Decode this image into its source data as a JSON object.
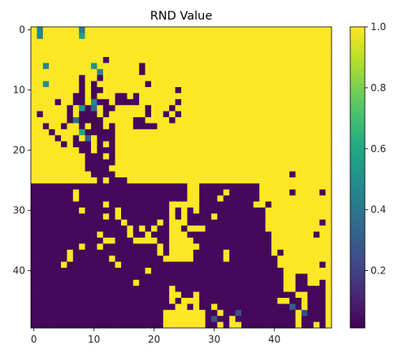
{
  "chart_data": {
    "type": "heatmap",
    "title": "RND Value",
    "xlabel": "",
    "ylabel": "",
    "rows": 50,
    "cols": 50,
    "xlim": [
      -0.5,
      49.5
    ],
    "ylim": [
      49.5,
      -0.5
    ],
    "xticks": [
      0,
      10,
      20,
      30,
      40
    ],
    "yticks": [
      0,
      10,
      20,
      30,
      40
    ],
    "colormap": "viridis",
    "vmin": 0.0,
    "vmax": 1.0,
    "colorbar_ticks": [
      "0.2",
      "0.4",
      "0.6",
      "0.8",
      "1.0"
    ],
    "colorbar_tick_values": [
      0.2,
      0.4,
      0.6,
      0.8,
      1.0
    ],
    "background_value": 1.0,
    "low_value": 0.02,
    "low_regions": [
      {
        "r0": 26,
        "r1": 49,
        "c0": 0,
        "c1": 22
      },
      {
        "r0": 39,
        "r1": 49,
        "c0": 23,
        "c1": 40
      },
      {
        "r0": 45,
        "r1": 49,
        "c0": 41,
        "c1": 48
      }
    ],
    "yellow_in_low": [
      [
        27,
        7
      ],
      [
        28,
        7
      ],
      [
        29,
        12
      ],
      [
        31,
        12
      ],
      [
        30,
        8
      ],
      [
        30,
        14
      ],
      [
        31,
        14
      ],
      [
        32,
        15
      ],
      [
        33,
        16
      ],
      [
        34,
        16
      ],
      [
        35,
        17
      ],
      [
        35,
        18
      ],
      [
        35,
        19
      ],
      [
        35,
        20
      ],
      [
        34,
        19
      ],
      [
        33,
        20
      ],
      [
        32,
        21
      ],
      [
        33,
        18
      ],
      [
        34,
        11
      ],
      [
        35,
        12
      ],
      [
        35,
        13
      ],
      [
        36,
        8
      ],
      [
        36,
        11
      ],
      [
        37,
        6
      ],
      [
        38,
        6
      ],
      [
        39,
        5
      ],
      [
        38,
        13
      ],
      [
        39,
        14
      ],
      [
        40,
        19
      ],
      [
        37,
        21
      ],
      [
        36,
        21
      ],
      [
        38,
        22
      ],
      [
        42,
        17
      ],
      [
        43,
        23
      ],
      [
        44,
        23
      ],
      [
        45,
        23
      ],
      [
        44,
        24
      ],
      [
        45,
        25
      ],
      [
        45,
        26
      ],
      [
        46,
        24
      ],
      [
        46,
        25
      ],
      [
        47,
        22
      ],
      [
        48,
        22
      ],
      [
        49,
        22
      ],
      [
        47,
        23
      ],
      [
        48,
        23
      ],
      [
        49,
        23
      ],
      [
        47,
        24
      ],
      [
        48,
        24
      ],
      [
        49,
        24
      ],
      [
        47,
        25
      ],
      [
        48,
        25
      ],
      [
        49,
        25
      ],
      [
        47,
        26
      ],
      [
        48,
        26
      ],
      [
        49,
        26
      ],
      [
        47,
        27
      ],
      [
        48,
        27
      ],
      [
        49,
        27
      ],
      [
        46,
        27
      ],
      [
        45,
        27
      ],
      [
        44,
        27
      ],
      [
        47,
        28
      ],
      [
        48,
        28
      ],
      [
        49,
        28
      ],
      [
        46,
        30
      ],
      [
        47,
        31
      ],
      [
        49,
        31
      ],
      [
        48,
        33
      ],
      [
        49,
        33
      ],
      [
        49,
        34
      ],
      [
        45,
        41
      ],
      [
        45,
        42
      ],
      [
        45,
        45
      ],
      [
        46,
        45
      ],
      [
        47,
        44
      ],
      [
        48,
        44
      ],
      [
        49,
        44
      ],
      [
        49,
        47
      ]
    ],
    "low_in_high": [
      [
        14,
        1
      ],
      [
        16,
        2
      ],
      [
        17,
        3
      ],
      [
        18,
        4
      ],
      [
        19,
        5
      ],
      [
        13,
        6
      ],
      [
        14,
        6
      ],
      [
        15,
        6
      ],
      [
        12,
        4
      ],
      [
        16,
        5
      ],
      [
        18,
        7
      ],
      [
        19,
        7
      ],
      [
        19,
        8
      ],
      [
        20,
        8
      ],
      [
        21,
        9
      ],
      [
        22,
        9
      ],
      [
        23,
        9
      ],
      [
        24,
        10
      ],
      [
        25,
        11
      ],
      [
        26,
        11
      ],
      [
        21,
        10
      ],
      [
        22,
        10
      ],
      [
        23,
        10
      ],
      [
        24,
        11
      ],
      [
        22,
        11
      ],
      [
        23,
        11
      ],
      [
        23,
        12
      ],
      [
        24,
        12
      ],
      [
        24,
        13
      ],
      [
        25,
        13
      ],
      [
        26,
        12
      ],
      [
        26,
        13
      ],
      [
        25,
        14
      ],
      [
        25,
        15
      ],
      [
        26,
        14
      ],
      [
        26,
        15
      ],
      [
        17,
        10
      ],
      [
        16,
        10
      ],
      [
        15,
        9
      ],
      [
        14,
        9
      ],
      [
        13,
        9
      ],
      [
        12,
        8
      ],
      [
        11,
        8
      ],
      [
        10,
        8
      ],
      [
        11,
        7
      ],
      [
        12,
        7
      ],
      [
        9,
        10
      ],
      [
        10,
        10
      ],
      [
        11,
        10
      ],
      [
        12,
        10
      ],
      [
        13,
        10
      ],
      [
        14,
        10
      ],
      [
        15,
        10
      ],
      [
        16,
        10
      ],
      [
        15,
        11
      ],
      [
        16,
        11
      ],
      [
        17,
        11
      ],
      [
        18,
        11
      ],
      [
        19,
        11
      ],
      [
        20,
        11
      ],
      [
        12,
        11
      ],
      [
        12,
        12
      ],
      [
        13,
        12
      ],
      [
        14,
        12
      ],
      [
        11,
        14
      ],
      [
        11,
        15
      ],
      [
        12,
        14
      ],
      [
        12,
        15
      ],
      [
        12,
        16
      ],
      [
        15,
        17
      ],
      [
        16,
        17
      ],
      [
        15,
        18
      ],
      [
        16,
        18
      ],
      [
        16,
        19
      ],
      [
        16,
        20
      ],
      [
        13,
        19
      ],
      [
        14,
        19
      ],
      [
        14,
        24
      ],
      [
        10,
        24
      ],
      [
        12,
        24
      ],
      [
        10,
        11
      ],
      [
        8,
        11
      ],
      [
        9,
        19
      ],
      [
        14,
        22
      ],
      [
        13,
        23
      ],
      [
        15,
        23
      ],
      [
        11,
        17
      ],
      [
        12,
        17
      ],
      [
        16,
        13
      ],
      [
        17,
        13
      ],
      [
        17,
        12
      ],
      [
        18,
        12
      ],
      [
        20,
        12
      ],
      [
        19,
        13
      ],
      [
        20,
        13
      ],
      [
        21,
        13
      ],
      [
        22,
        13
      ],
      [
        14,
        8
      ],
      [
        15,
        8
      ],
      [
        16,
        8
      ],
      [
        17,
        9
      ],
      [
        18,
        9
      ],
      [
        19,
        9
      ],
      [
        20,
        9
      ],
      [
        21,
        11
      ],
      [
        22,
        12
      ],
      [
        13,
        13
      ],
      [
        18,
        13
      ],
      [
        8,
        8
      ],
      [
        9,
        8
      ],
      [
        6,
        18
      ],
      [
        7,
        18
      ],
      [
        5,
        12
      ]
    ],
    "purple_blobs": [
      {
        "r0": 26,
        "r1": 28,
        "c0": 23,
        "c1": 25
      },
      {
        "r0": 26,
        "r1": 26,
        "c0": 28,
        "c1": 36
      },
      {
        "r0": 27,
        "r1": 30,
        "c0": 28,
        "c1": 30
      },
      {
        "r0": 27,
        "r1": 30,
        "c0": 33,
        "c1": 36
      },
      {
        "r0": 29,
        "r1": 33,
        "c0": 31,
        "c1": 34
      },
      {
        "r0": 30,
        "r1": 34,
        "c0": 35,
        "c1": 38
      },
      {
        "r0": 32,
        "r1": 36,
        "c0": 30,
        "c1": 36
      },
      {
        "r0": 33,
        "r1": 38,
        "c0": 33,
        "c1": 38
      },
      {
        "r0": 36,
        "r1": 39,
        "c0": 28,
        "c1": 31
      },
      {
        "r0": 37,
        "r1": 41,
        "c0": 36,
        "c1": 39
      },
      {
        "r0": 40,
        "r1": 44,
        "c0": 38,
        "c1": 41
      },
      {
        "r0": 31,
        "r1": 32,
        "c0": 26,
        "c1": 29
      },
      {
        "r0": 34,
        "r1": 35,
        "c0": 27,
        "c1": 29
      },
      {
        "r0": 41,
        "r1": 43,
        "c0": 44,
        "c1": 45
      },
      {
        "r0": 43,
        "r1": 44,
        "c0": 46,
        "c1": 47
      },
      {
        "r0": 42,
        "r1": 44,
        "c0": 48,
        "c1": 48
      }
    ],
    "purple_singles": [
      [
        28,
        30
      ],
      [
        28,
        37
      ],
      [
        27,
        37
      ],
      [
        30,
        24
      ],
      [
        30,
        26
      ],
      [
        29,
        39
      ],
      [
        32,
        38
      ],
      [
        31,
        38
      ],
      [
        33,
        29
      ],
      [
        34,
        39
      ],
      [
        36,
        39
      ],
      [
        37,
        27
      ],
      [
        38,
        27
      ],
      [
        24,
        43
      ],
      [
        27,
        43
      ],
      [
        27,
        48
      ],
      [
        34,
        47
      ],
      [
        32,
        48
      ],
      [
        39,
        48
      ],
      [
        41,
        41
      ],
      [
        42,
        41
      ],
      [
        40,
        33
      ],
      [
        38,
        40
      ],
      [
        37,
        41
      ],
      [
        35,
        39
      ],
      [
        29,
        35
      ],
      [
        28,
        32
      ],
      [
        27,
        31
      ],
      [
        26,
        37
      ],
      [
        31,
        24
      ],
      [
        33,
        25
      ],
      [
        34,
        26
      ],
      [
        38,
        40
      ],
      [
        43,
        40
      ],
      [
        44,
        39
      ],
      [
        44,
        42
      ],
      [
        44,
        43
      ],
      [
        45,
        44
      ]
    ],
    "mid_cells": [
      {
        "row": 0,
        "col": 1,
        "value": 0.45
      },
      {
        "row": 0,
        "col": 8,
        "value": 0.4
      },
      {
        "row": 1,
        "col": 1,
        "value": 0.45
      },
      {
        "row": 1,
        "col": 8,
        "value": 0.55
      },
      {
        "row": 6,
        "col": 2,
        "value": 0.45
      },
      {
        "row": 6,
        "col": 10,
        "value": 0.5
      },
      {
        "row": 7,
        "col": 11,
        "value": 0.45
      },
      {
        "row": 9,
        "col": 2,
        "value": 0.5
      },
      {
        "row": 12,
        "col": 10,
        "value": 0.45
      },
      {
        "row": 13,
        "col": 8,
        "value": 0.5
      },
      {
        "row": 13,
        "col": 10,
        "value": 0.35
      },
      {
        "row": 17,
        "col": 8,
        "value": 0.6
      },
      {
        "row": 18,
        "col": 9,
        "value": 0.3
      },
      {
        "row": 15,
        "col": 7,
        "value": 0.35
      },
      {
        "row": 47,
        "col": 34,
        "value": 0.25
      },
      {
        "row": 47,
        "col": 45,
        "value": 0.25
      },
      {
        "row": 46,
        "col": 43,
        "value": 0.3
      },
      {
        "row": 48,
        "col": 30,
        "value": 0.25
      }
    ]
  }
}
